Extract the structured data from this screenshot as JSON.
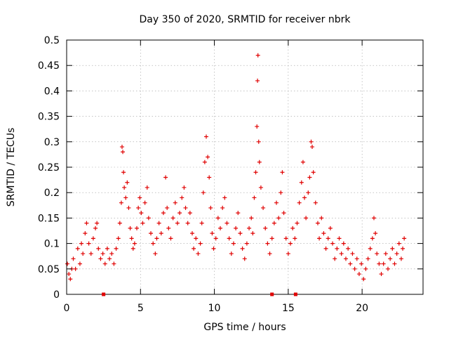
{
  "chart_data": {
    "type": "scatter",
    "title": "Day 350 of 2020, SRMTID for receiver nbrk",
    "xlabel": "GPS time / hours",
    "ylabel": "SRMTID / TECUs",
    "xlim": [
      0,
      24.125
    ],
    "ylim": [
      0,
      0.5
    ],
    "xticks": [
      0,
      5,
      10,
      15,
      20
    ],
    "xtick_labels": [
      "0",
      "5",
      "10",
      "15",
      "20"
    ],
    "yticks": [
      0,
      0.05,
      0.1,
      0.15,
      0.2,
      0.25,
      0.3,
      0.35,
      0.4,
      0.45,
      0.5
    ],
    "ytick_labels": [
      "0",
      "0.05",
      "0.1",
      "0.15",
      "0.2",
      "0.25",
      "0.3",
      "0.35",
      "0.4",
      "0.45",
      "0.5"
    ],
    "grid": true,
    "marker": "+",
    "series_color": "#e00000",
    "axis_marker_hours": [
      2.5,
      13.9,
      15.5
    ],
    "series": [
      {
        "name": "SRMTID",
        "points": [
          [
            0.05,
            0.06
          ],
          [
            0.15,
            0.04
          ],
          [
            0.25,
            0.03
          ],
          [
            0.35,
            0.05
          ],
          [
            0.45,
            0.07
          ],
          [
            0.6,
            0.05
          ],
          [
            0.75,
            0.09
          ],
          [
            0.9,
            0.06
          ],
          [
            1.0,
            0.1
          ],
          [
            1.1,
            0.08
          ],
          [
            1.25,
            0.12
          ],
          [
            1.35,
            0.14
          ],
          [
            1.5,
            0.1
          ],
          [
            1.65,
            0.08
          ],
          [
            1.8,
            0.11
          ],
          [
            1.95,
            0.13
          ],
          [
            2.05,
            0.14
          ],
          [
            2.15,
            0.09
          ],
          [
            2.3,
            0.07
          ],
          [
            2.45,
            0.08
          ],
          [
            2.6,
            0.06
          ],
          [
            2.75,
            0.09
          ],
          [
            2.9,
            0.07
          ],
          [
            3.05,
            0.08
          ],
          [
            3.2,
            0.06
          ],
          [
            3.35,
            0.09
          ],
          [
            3.5,
            0.11
          ],
          [
            3.6,
            0.14
          ],
          [
            3.7,
            0.18
          ],
          [
            3.75,
            0.29
          ],
          [
            3.8,
            0.28
          ],
          [
            3.85,
            0.24
          ],
          [
            3.9,
            0.21
          ],
          [
            4.0,
            0.19
          ],
          [
            4.1,
            0.22
          ],
          [
            4.2,
            0.17
          ],
          [
            4.3,
            0.13
          ],
          [
            4.4,
            0.11
          ],
          [
            4.5,
            0.09
          ],
          [
            4.6,
            0.1
          ],
          [
            4.75,
            0.13
          ],
          [
            4.85,
            0.17
          ],
          [
            4.95,
            0.19
          ],
          [
            5.05,
            0.16
          ],
          [
            5.15,
            0.14
          ],
          [
            5.3,
            0.18
          ],
          [
            5.45,
            0.21
          ],
          [
            5.55,
            0.15
          ],
          [
            5.7,
            0.12
          ],
          [
            5.85,
            0.1
          ],
          [
            6.0,
            0.08
          ],
          [
            6.1,
            0.11
          ],
          [
            6.25,
            0.14
          ],
          [
            6.4,
            0.12
          ],
          [
            6.55,
            0.16
          ],
          [
            6.7,
            0.23
          ],
          [
            6.8,
            0.17
          ],
          [
            6.9,
            0.13
          ],
          [
            7.05,
            0.11
          ],
          [
            7.2,
            0.15
          ],
          [
            7.35,
            0.18
          ],
          [
            7.5,
            0.14
          ],
          [
            7.65,
            0.16
          ],
          [
            7.8,
            0.19
          ],
          [
            7.95,
            0.21
          ],
          [
            8.05,
            0.17
          ],
          [
            8.2,
            0.14
          ],
          [
            8.35,
            0.16
          ],
          [
            8.5,
            0.12
          ],
          [
            8.6,
            0.09
          ],
          [
            8.75,
            0.11
          ],
          [
            8.9,
            0.08
          ],
          [
            9.05,
            0.1
          ],
          [
            9.15,
            0.14
          ],
          [
            9.25,
            0.2
          ],
          [
            9.35,
            0.26
          ],
          [
            9.45,
            0.31
          ],
          [
            9.55,
            0.27
          ],
          [
            9.65,
            0.23
          ],
          [
            9.75,
            0.17
          ],
          [
            9.85,
            0.12
          ],
          [
            9.95,
            0.09
          ],
          [
            10.1,
            0.11
          ],
          [
            10.25,
            0.15
          ],
          [
            10.4,
            0.13
          ],
          [
            10.55,
            0.17
          ],
          [
            10.7,
            0.19
          ],
          [
            10.85,
            0.14
          ],
          [
            11.0,
            0.11
          ],
          [
            11.15,
            0.08
          ],
          [
            11.3,
            0.1
          ],
          [
            11.45,
            0.13
          ],
          [
            11.6,
            0.16
          ],
          [
            11.75,
            0.12
          ],
          [
            11.9,
            0.09
          ],
          [
            12.05,
            0.07
          ],
          [
            12.2,
            0.1
          ],
          [
            12.35,
            0.13
          ],
          [
            12.5,
            0.15
          ],
          [
            12.6,
            0.12
          ],
          [
            12.7,
            0.19
          ],
          [
            12.8,
            0.24
          ],
          [
            12.88,
            0.33
          ],
          [
            12.92,
            0.42
          ],
          [
            12.95,
            0.47
          ],
          [
            13.0,
            0.3
          ],
          [
            13.05,
            0.26
          ],
          [
            13.15,
            0.21
          ],
          [
            13.3,
            0.17
          ],
          [
            13.45,
            0.13
          ],
          [
            13.6,
            0.1
          ],
          [
            13.75,
            0.08
          ],
          [
            13.9,
            0.11
          ],
          [
            14.05,
            0.14
          ],
          [
            14.2,
            0.18
          ],
          [
            14.35,
            0.15
          ],
          [
            14.5,
            0.2
          ],
          [
            14.6,
            0.24
          ],
          [
            14.7,
            0.16
          ],
          [
            14.85,
            0.11
          ],
          [
            15.0,
            0.08
          ],
          [
            15.15,
            0.1
          ],
          [
            15.3,
            0.13
          ],
          [
            15.45,
            0.11
          ],
          [
            15.6,
            0.14
          ],
          [
            15.75,
            0.18
          ],
          [
            15.9,
            0.22
          ],
          [
            16.0,
            0.26
          ],
          [
            16.1,
            0.19
          ],
          [
            16.2,
            0.15
          ],
          [
            16.35,
            0.2
          ],
          [
            16.45,
            0.23
          ],
          [
            16.55,
            0.3
          ],
          [
            16.62,
            0.29
          ],
          [
            16.7,
            0.24
          ],
          [
            16.85,
            0.18
          ],
          [
            17.0,
            0.14
          ],
          [
            17.1,
            0.11
          ],
          [
            17.25,
            0.15
          ],
          [
            17.4,
            0.12
          ],
          [
            17.55,
            0.09
          ],
          [
            17.7,
            0.11
          ],
          [
            17.85,
            0.13
          ],
          [
            18.0,
            0.1
          ],
          [
            18.15,
            0.07
          ],
          [
            18.3,
            0.09
          ],
          [
            18.45,
            0.11
          ],
          [
            18.6,
            0.08
          ],
          [
            18.75,
            0.1
          ],
          [
            18.9,
            0.07
          ],
          [
            19.05,
            0.09
          ],
          [
            19.2,
            0.06
          ],
          [
            19.35,
            0.08
          ],
          [
            19.5,
            0.05
          ],
          [
            19.65,
            0.07
          ],
          [
            19.8,
            0.04
          ],
          [
            19.95,
            0.06
          ],
          [
            20.1,
            0.03
          ],
          [
            20.25,
            0.05
          ],
          [
            20.4,
            0.07
          ],
          [
            20.55,
            0.09
          ],
          [
            20.7,
            0.11
          ],
          [
            20.8,
            0.15
          ],
          [
            20.9,
            0.12
          ],
          [
            21.0,
            0.08
          ],
          [
            21.15,
            0.06
          ],
          [
            21.3,
            0.04
          ],
          [
            21.45,
            0.06
          ],
          [
            21.6,
            0.08
          ],
          [
            21.75,
            0.05
          ],
          [
            21.9,
            0.07
          ],
          [
            22.05,
            0.09
          ],
          [
            22.2,
            0.06
          ],
          [
            22.35,
            0.08
          ],
          [
            22.5,
            0.1
          ],
          [
            22.65,
            0.07
          ],
          [
            22.75,
            0.09
          ],
          [
            22.85,
            0.11
          ]
        ]
      }
    ]
  }
}
